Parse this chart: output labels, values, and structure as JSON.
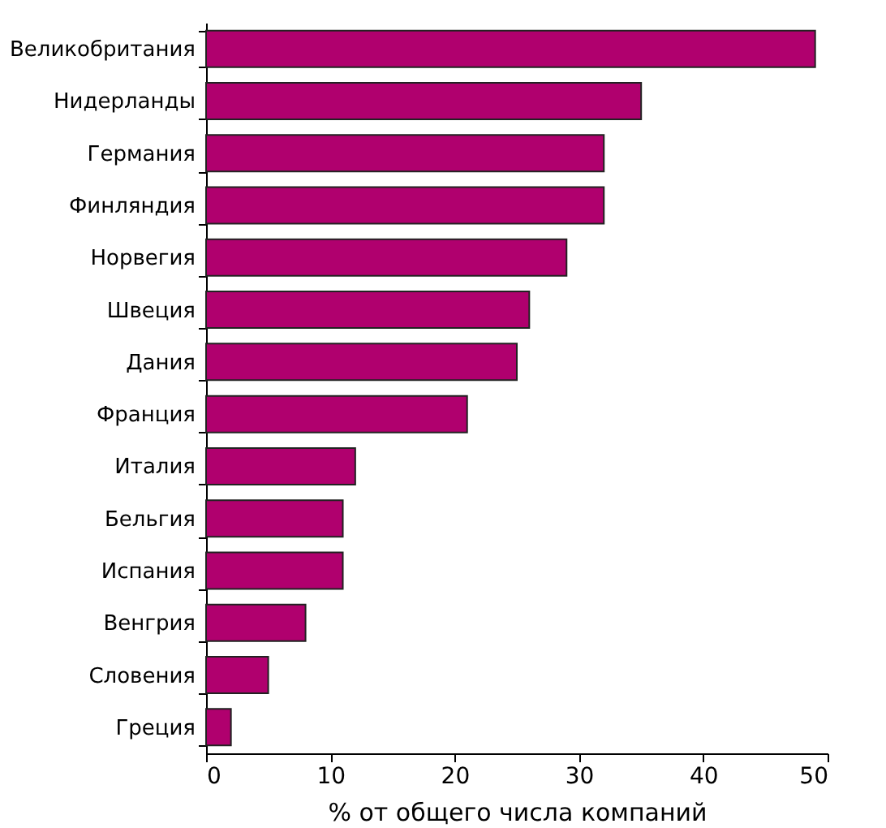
{
  "chart_data": {
    "type": "bar",
    "orientation": "horizontal",
    "xlabel": "% от общего числа компаний",
    "categories": [
      "Великобритания",
      "Нидерланды",
      "Германия",
      "Финляндия",
      "Норвегия",
      "Швеция",
      "Дания",
      "Франция",
      "Италия",
      "Бельгия",
      "Испания",
      "Венгрия",
      "Словения",
      "Греция"
    ],
    "values": [
      49,
      35,
      32,
      32,
      29,
      26,
      25,
      21,
      12,
      11,
      11,
      8,
      5,
      2
    ],
    "color": "#b0006e",
    "xlim": [
      0,
      50
    ],
    "xticks": [
      0,
      10,
      20,
      30,
      40,
      50
    ],
    "grid": false
  }
}
